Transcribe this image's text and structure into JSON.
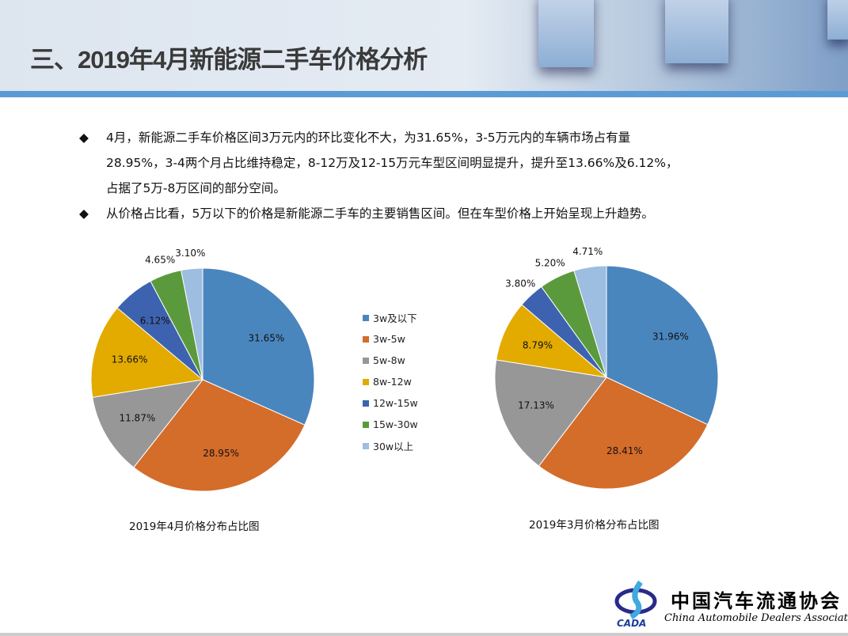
{
  "title": "三、2019年4月新能源二手车价格分析",
  "bullets": [
    {
      "icon": "diamond-bullet",
      "marker": "◆",
      "lines": [
        "4月，新能源二手车价格区间3万元内的环比变化不大，为31.65%，3-5万元内的车辆市场占有量",
        "28.95%，3-4两个月占比维持稳定，8-12万及12-15万元车型区间明显提升，提升至13.66%及6.12%，",
        "占据了5万-8万区间的部分空间。"
      ]
    },
    {
      "icon": "diamond-bullet",
      "marker": "◆",
      "lines": [
        "从价格占比看，5万以下的价格是新能源二手车的主要销售区间。但在车型价格上开始呈现上升趋势。"
      ]
    }
  ],
  "legend": [
    "3w及以下",
    "3w-5w",
    "5w-8w",
    "8w-12w",
    "12w-15w",
    "15w-30w",
    "30w以上"
  ],
  "colors": [
    "#4a86be",
    "#d46c2a",
    "#979797",
    "#e3aa00",
    "#3d63b0",
    "#5b9a3c",
    "#9dbde1"
  ],
  "chart_data": [
    {
      "type": "pie",
      "title": "2019年4月价格分布占比图",
      "categories": [
        "3w及以下",
        "3w-5w",
        "5w-8w",
        "8w-12w",
        "12w-15w",
        "15w-30w",
        "30w以上"
      ],
      "values": [
        31.65,
        28.95,
        11.87,
        13.66,
        6.12,
        4.65,
        3.1
      ],
      "labels": [
        "31.65%",
        "28.95%",
        "11.87%",
        "13.66%",
        "6.12%",
        "4.65%",
        "3.10%"
      ]
    },
    {
      "type": "pie",
      "title": "2019年3月价格分布占比图",
      "categories": [
        "3w及以下",
        "3w-5w",
        "5w-8w",
        "8w-12w",
        "12w-15w",
        "15w-30w",
        "30w以上"
      ],
      "values": [
        31.96,
        28.41,
        17.13,
        8.79,
        3.8,
        5.2,
        4.71
      ],
      "labels": [
        "31.96%",
        "28.41%",
        "17.13%",
        "8.79%",
        "3.80%",
        "5.20%",
        "4.71%"
      ]
    }
  ],
  "logo": {
    "cn": "中国汽车流通协会",
    "en": "China Automobile Dealers Association",
    "abbr": "CADA"
  }
}
